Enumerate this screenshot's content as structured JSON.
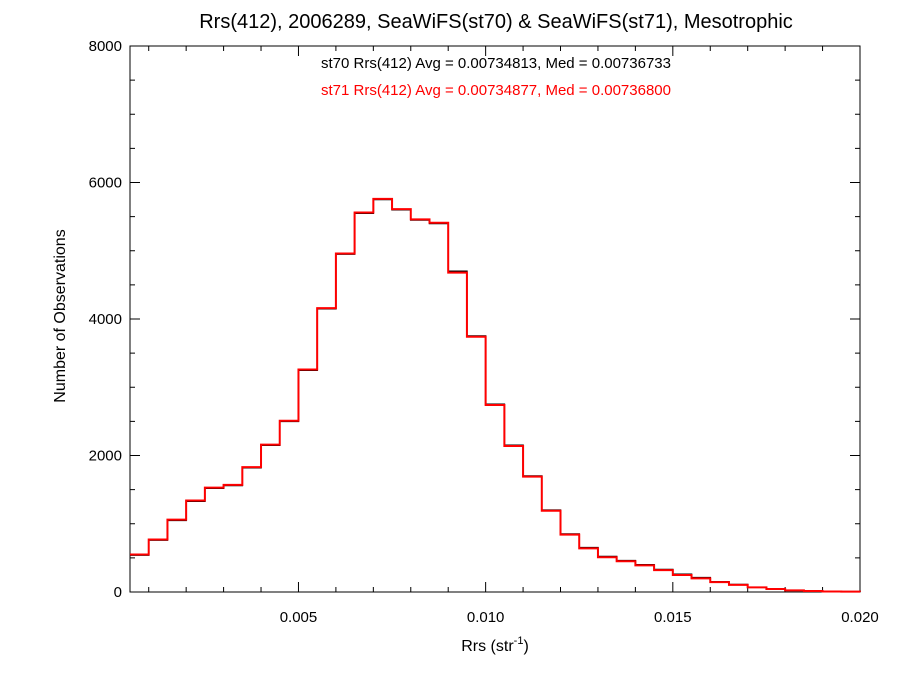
{
  "chart_data": {
    "type": "line",
    "title": "Rrs(412), 2006289, SeaWiFS(st70) & SeaWiFS(st71), Mesotrophic",
    "xlabel": "Rrs (str",
    "xlabel_sup": "-1",
    "xlabel_close": ")",
    "ylabel": "Number of Observations",
    "xlim": [
      0.0005,
      0.02
    ],
    "ylim": [
      0,
      8000
    ],
    "x_ticks": [
      0.005,
      0.01,
      0.015,
      0.02
    ],
    "x_tick_labels": [
      "0.005",
      "0.010",
      "0.015",
      "0.020"
    ],
    "y_ticks": [
      0,
      2000,
      4000,
      6000,
      8000
    ],
    "y_tick_labels": [
      "0",
      "2000",
      "4000",
      "6000",
      "8000"
    ],
    "step": "histogram",
    "annotations": [
      {
        "text": "st70 Rrs(412) Avg = 0.00734813, Med = 0.00736733",
        "color": "#000000"
      },
      {
        "text": "st71 Rrs(412) Avg = 0.00734877, Med = 0.00736800",
        "color": "#ff0000"
      }
    ],
    "series": [
      {
        "color": "#000000",
        "x": [
          0.0005,
          0.001,
          0.0015,
          0.002,
          0.0025,
          0.003,
          0.0035,
          0.004,
          0.0045,
          0.005,
          0.0055,
          0.006,
          0.0065,
          0.007,
          0.0075,
          0.008,
          0.0085,
          0.009,
          0.0095,
          0.01,
          0.0105,
          0.011,
          0.0115,
          0.012,
          0.0125,
          0.013,
          0.0135,
          0.014,
          0.0145,
          0.015,
          0.0155,
          0.016,
          0.0165,
          0.017,
          0.0175,
          0.018,
          0.0185,
          0.019,
          0.0195,
          0.02
        ],
        "values": [
          540,
          760,
          1050,
          1330,
          1520,
          1560,
          1820,
          2150,
          2500,
          3250,
          4150,
          4950,
          5550,
          5750,
          5600,
          5450,
          5400,
          4700,
          3750,
          2750,
          2150,
          1700,
          1200,
          850,
          650,
          520,
          460,
          400,
          330,
          260,
          210,
          150,
          110,
          70,
          45,
          25,
          15,
          8,
          5,
          3
        ]
      },
      {
        "color": "#ff0000",
        "x": [
          0.0005,
          0.001,
          0.0015,
          0.002,
          0.0025,
          0.003,
          0.0035,
          0.004,
          0.0045,
          0.005,
          0.0055,
          0.006,
          0.0065,
          0.007,
          0.0075,
          0.008,
          0.0085,
          0.009,
          0.0095,
          0.01,
          0.0105,
          0.011,
          0.0115,
          0.012,
          0.0125,
          0.013,
          0.0135,
          0.014,
          0.0145,
          0.015,
          0.0155,
          0.016,
          0.0165,
          0.017,
          0.0175,
          0.018,
          0.0185,
          0.019,
          0.0195,
          0.02
        ],
        "values": [
          550,
          770,
          1060,
          1340,
          1530,
          1570,
          1830,
          2160,
          2510,
          3260,
          4160,
          4960,
          5560,
          5760,
          5610,
          5460,
          5410,
          4680,
          3740,
          2740,
          2140,
          1690,
          1190,
          840,
          640,
          510,
          450,
          390,
          320,
          250,
          200,
          145,
          105,
          68,
          44,
          24,
          14,
          8,
          5,
          3
        ]
      }
    ]
  }
}
